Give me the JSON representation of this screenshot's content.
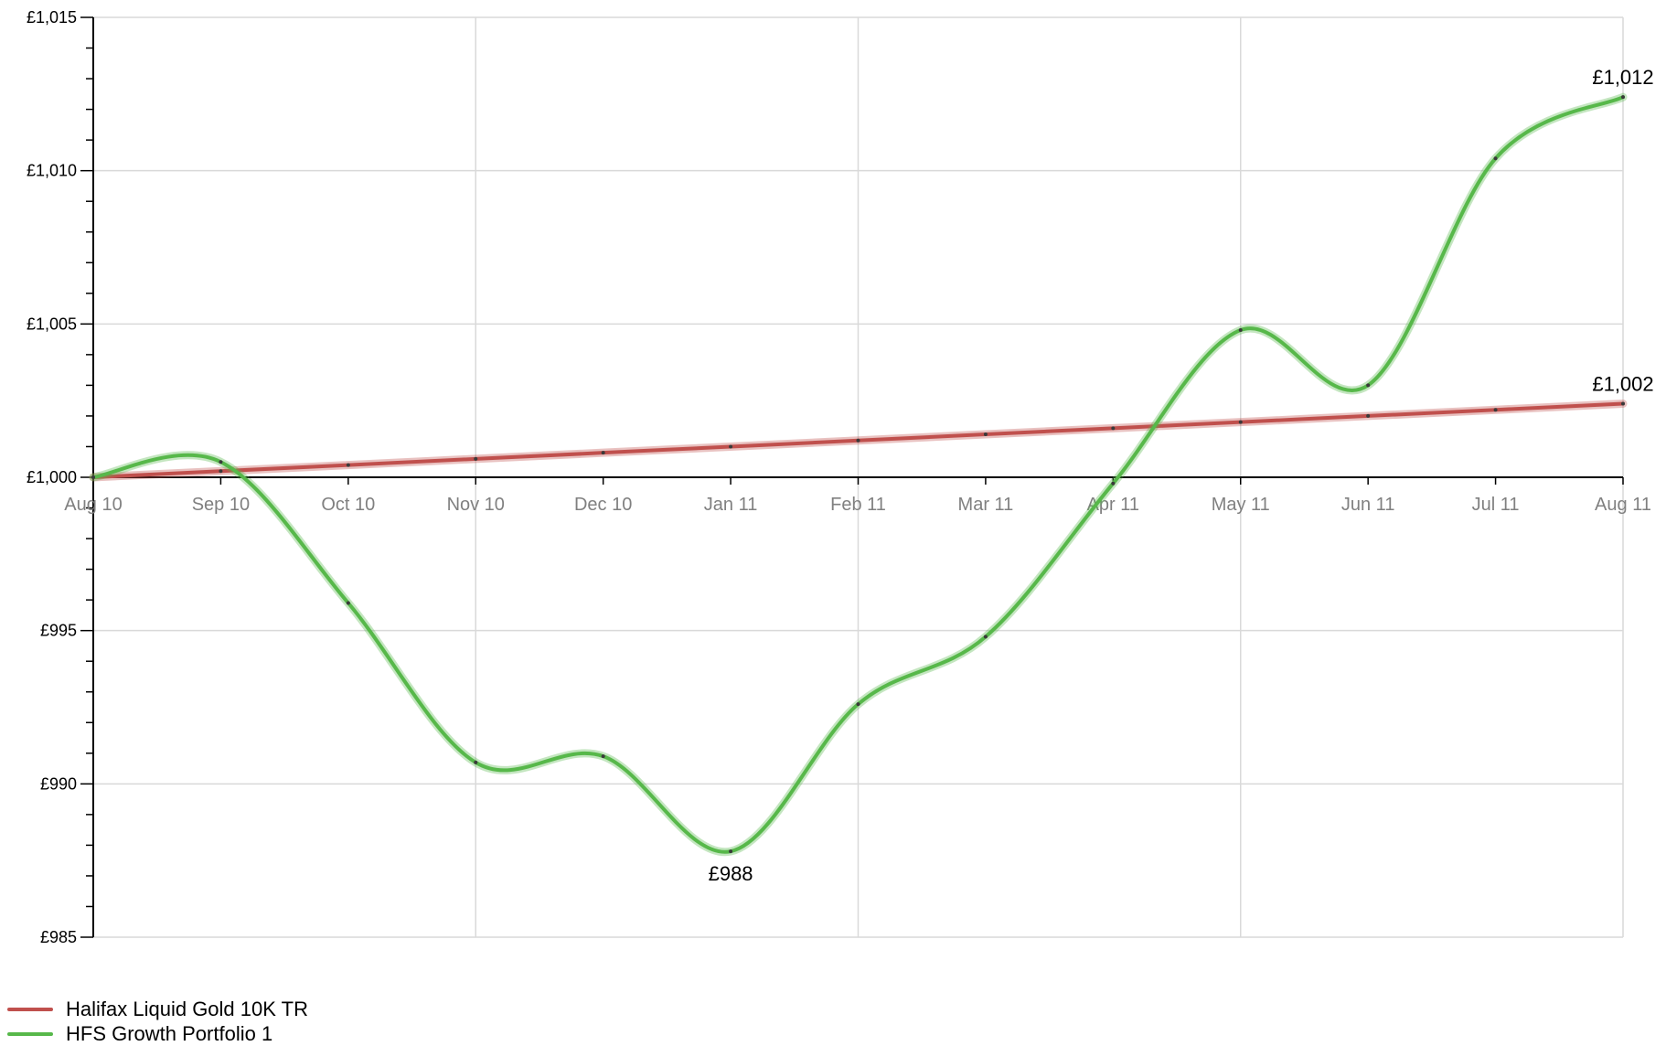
{
  "chart_data": {
    "type": "line",
    "title": "",
    "xlabel": "",
    "ylabel": "",
    "x": [
      "Aug 10",
      "Sep 10",
      "Oct 10",
      "Nov 10",
      "Dec 10",
      "Jan 11",
      "Feb 11",
      "Mar 11",
      "Apr 11",
      "May 11",
      "Jun 11",
      "Jul 11",
      "Aug 11"
    ],
    "ylim": [
      985,
      1015
    ],
    "yticks": [
      985,
      990,
      995,
      1000,
      1005,
      1010,
      1015
    ],
    "ytick_labels": [
      "£985",
      "£990",
      "£995",
      "£1,000",
      "£1,005",
      "£1,010",
      "£1,015"
    ],
    "grid": true,
    "legend_position": "bottom-left",
    "series": [
      {
        "name": "Halifax Liquid Gold 10K TR",
        "color": "#c0504d",
        "values": [
          1000.0,
          1000.2,
          1000.4,
          1000.6,
          1000.8,
          1001.0,
          1001.2,
          1001.4,
          1001.6,
          1001.8,
          1002.0,
          1002.2,
          1002.4
        ]
      },
      {
        "name": "HFS Growth Portfolio 1",
        "color": "#57b84a",
        "values": [
          1000.0,
          1000.5,
          995.9,
          990.7,
          990.9,
          987.8,
          992.6,
          994.8,
          999.8,
          1004.8,
          1003.0,
          1010.4,
          1012.4
        ]
      }
    ],
    "annotations": [
      {
        "text": "£1,012",
        "x": "Aug 11",
        "y": 1012.4
      },
      {
        "text": "£1,002",
        "x": "Aug 11",
        "y": 1002.4
      },
      {
        "text": "£988",
        "x": "Jan 11",
        "y": 987.8
      }
    ]
  }
}
